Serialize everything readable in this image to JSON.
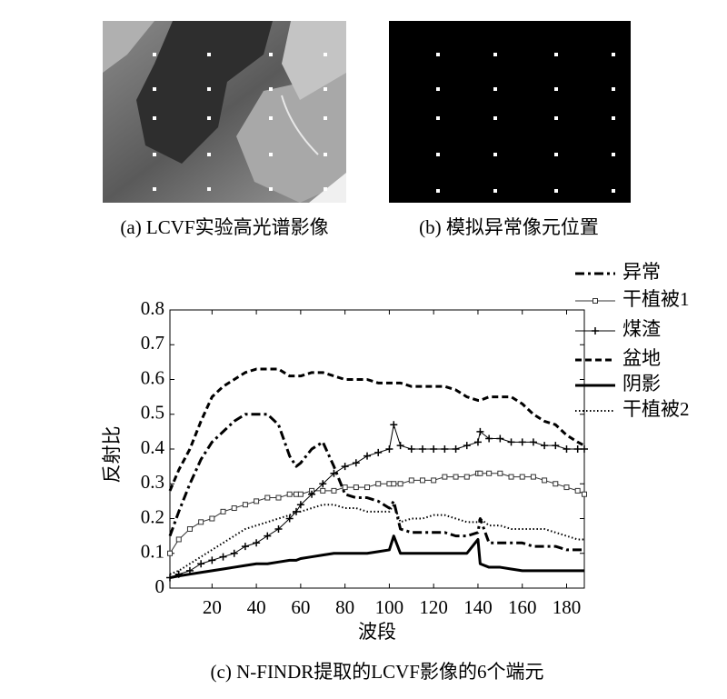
{
  "panels": [
    {
      "caption": "(a) LCVF实验高光谱影像"
    },
    {
      "caption": "(b) 模拟异常像元位置"
    }
  ],
  "chart_data": {
    "type": "line",
    "caption": "(c) N-FINDR提取的LCVF影像的6个端元",
    "xlabel": "波段",
    "ylabel": "反射比",
    "x": [
      1,
      5,
      10,
      15,
      20,
      25,
      30,
      35,
      40,
      45,
      50,
      55,
      58,
      60,
      65,
      70,
      75,
      80,
      85,
      90,
      95,
      100,
      102,
      105,
      110,
      115,
      120,
      125,
      130,
      135,
      140,
      141,
      145,
      150,
      155,
      160,
      165,
      170,
      175,
      180,
      185,
      188
    ],
    "xlim": [
      1,
      188
    ],
    "xticks": [
      20,
      40,
      60,
      80,
      100,
      120,
      140,
      160,
      180
    ],
    "ylim": [
      0,
      0.8
    ],
    "yticks": [
      0,
      0.1,
      0.2,
      0.3,
      0.4,
      0.5,
      0.6,
      0.7,
      0.8
    ],
    "legend": "upper right",
    "series": [
      {
        "name": "异常",
        "color": "#000000",
        "style": "dashdot",
        "marker": "none",
        "values": [
          0.15,
          0.22,
          0.3,
          0.37,
          0.42,
          0.45,
          0.48,
          0.5,
          0.5,
          0.5,
          0.47,
          0.38,
          0.35,
          0.36,
          0.4,
          0.42,
          0.35,
          0.27,
          0.26,
          0.26,
          0.25,
          0.23,
          0.25,
          0.17,
          0.16,
          0.16,
          0.16,
          0.16,
          0.15,
          0.15,
          0.16,
          0.2,
          0.13,
          0.13,
          0.13,
          0.13,
          0.12,
          0.12,
          0.12,
          0.11,
          0.11,
          0.11
        ]
      },
      {
        "name": "干植被1",
        "color": "#333333",
        "style": "solid",
        "marker": "square",
        "values": [
          0.1,
          0.14,
          0.17,
          0.19,
          0.2,
          0.22,
          0.23,
          0.24,
          0.25,
          0.26,
          0.26,
          0.27,
          0.27,
          0.27,
          0.28,
          0.28,
          0.28,
          0.29,
          0.29,
          0.29,
          0.3,
          0.3,
          0.3,
          0.3,
          0.31,
          0.31,
          0.31,
          0.32,
          0.32,
          0.32,
          0.33,
          0.33,
          0.33,
          0.33,
          0.32,
          0.32,
          0.32,
          0.31,
          0.3,
          0.29,
          0.28,
          0.27
        ]
      },
      {
        "name": "煤渣",
        "color": "#000000",
        "style": "solid",
        "marker": "plus",
        "values": [
          0.03,
          0.04,
          0.05,
          0.07,
          0.08,
          0.09,
          0.1,
          0.12,
          0.13,
          0.15,
          0.17,
          0.2,
          0.22,
          0.24,
          0.27,
          0.3,
          0.33,
          0.35,
          0.36,
          0.38,
          0.39,
          0.4,
          0.47,
          0.41,
          0.4,
          0.4,
          0.4,
          0.4,
          0.4,
          0.41,
          0.42,
          0.45,
          0.43,
          0.43,
          0.42,
          0.42,
          0.42,
          0.41,
          0.41,
          0.4,
          0.4,
          0.4
        ]
      },
      {
        "name": "盆地",
        "color": "#000000",
        "style": "dashed",
        "marker": "none",
        "values": [
          0.28,
          0.34,
          0.4,
          0.48,
          0.55,
          0.58,
          0.6,
          0.62,
          0.63,
          0.63,
          0.63,
          0.61,
          0.61,
          0.61,
          0.62,
          0.62,
          0.61,
          0.6,
          0.6,
          0.6,
          0.59,
          0.59,
          0.59,
          0.59,
          0.58,
          0.58,
          0.58,
          0.58,
          0.57,
          0.55,
          0.54,
          0.54,
          0.55,
          0.55,
          0.55,
          0.53,
          0.5,
          0.48,
          0.47,
          0.44,
          0.42,
          0.41
        ]
      },
      {
        "name": "阴影",
        "color": "#000000",
        "style": "thick",
        "marker": "none",
        "values": [
          0.03,
          0.035,
          0.04,
          0.045,
          0.05,
          0.055,
          0.06,
          0.065,
          0.07,
          0.07,
          0.075,
          0.08,
          0.08,
          0.085,
          0.09,
          0.095,
          0.1,
          0.1,
          0.1,
          0.1,
          0.105,
          0.11,
          0.15,
          0.1,
          0.1,
          0.1,
          0.1,
          0.1,
          0.1,
          0.1,
          0.14,
          0.07,
          0.06,
          0.06,
          0.055,
          0.05,
          0.05,
          0.05,
          0.05,
          0.05,
          0.05,
          0.05
        ]
      },
      {
        "name": "干植被2",
        "color": "#000000",
        "style": "dotted",
        "marker": "none",
        "values": [
          0.04,
          0.05,
          0.07,
          0.09,
          0.11,
          0.13,
          0.15,
          0.17,
          0.18,
          0.19,
          0.2,
          0.21,
          0.22,
          0.22,
          0.23,
          0.24,
          0.24,
          0.23,
          0.23,
          0.22,
          0.22,
          0.22,
          0.24,
          0.19,
          0.2,
          0.2,
          0.21,
          0.21,
          0.2,
          0.19,
          0.19,
          0.2,
          0.18,
          0.18,
          0.17,
          0.17,
          0.17,
          0.17,
          0.16,
          0.15,
          0.14,
          0.14
        ]
      }
    ]
  }
}
